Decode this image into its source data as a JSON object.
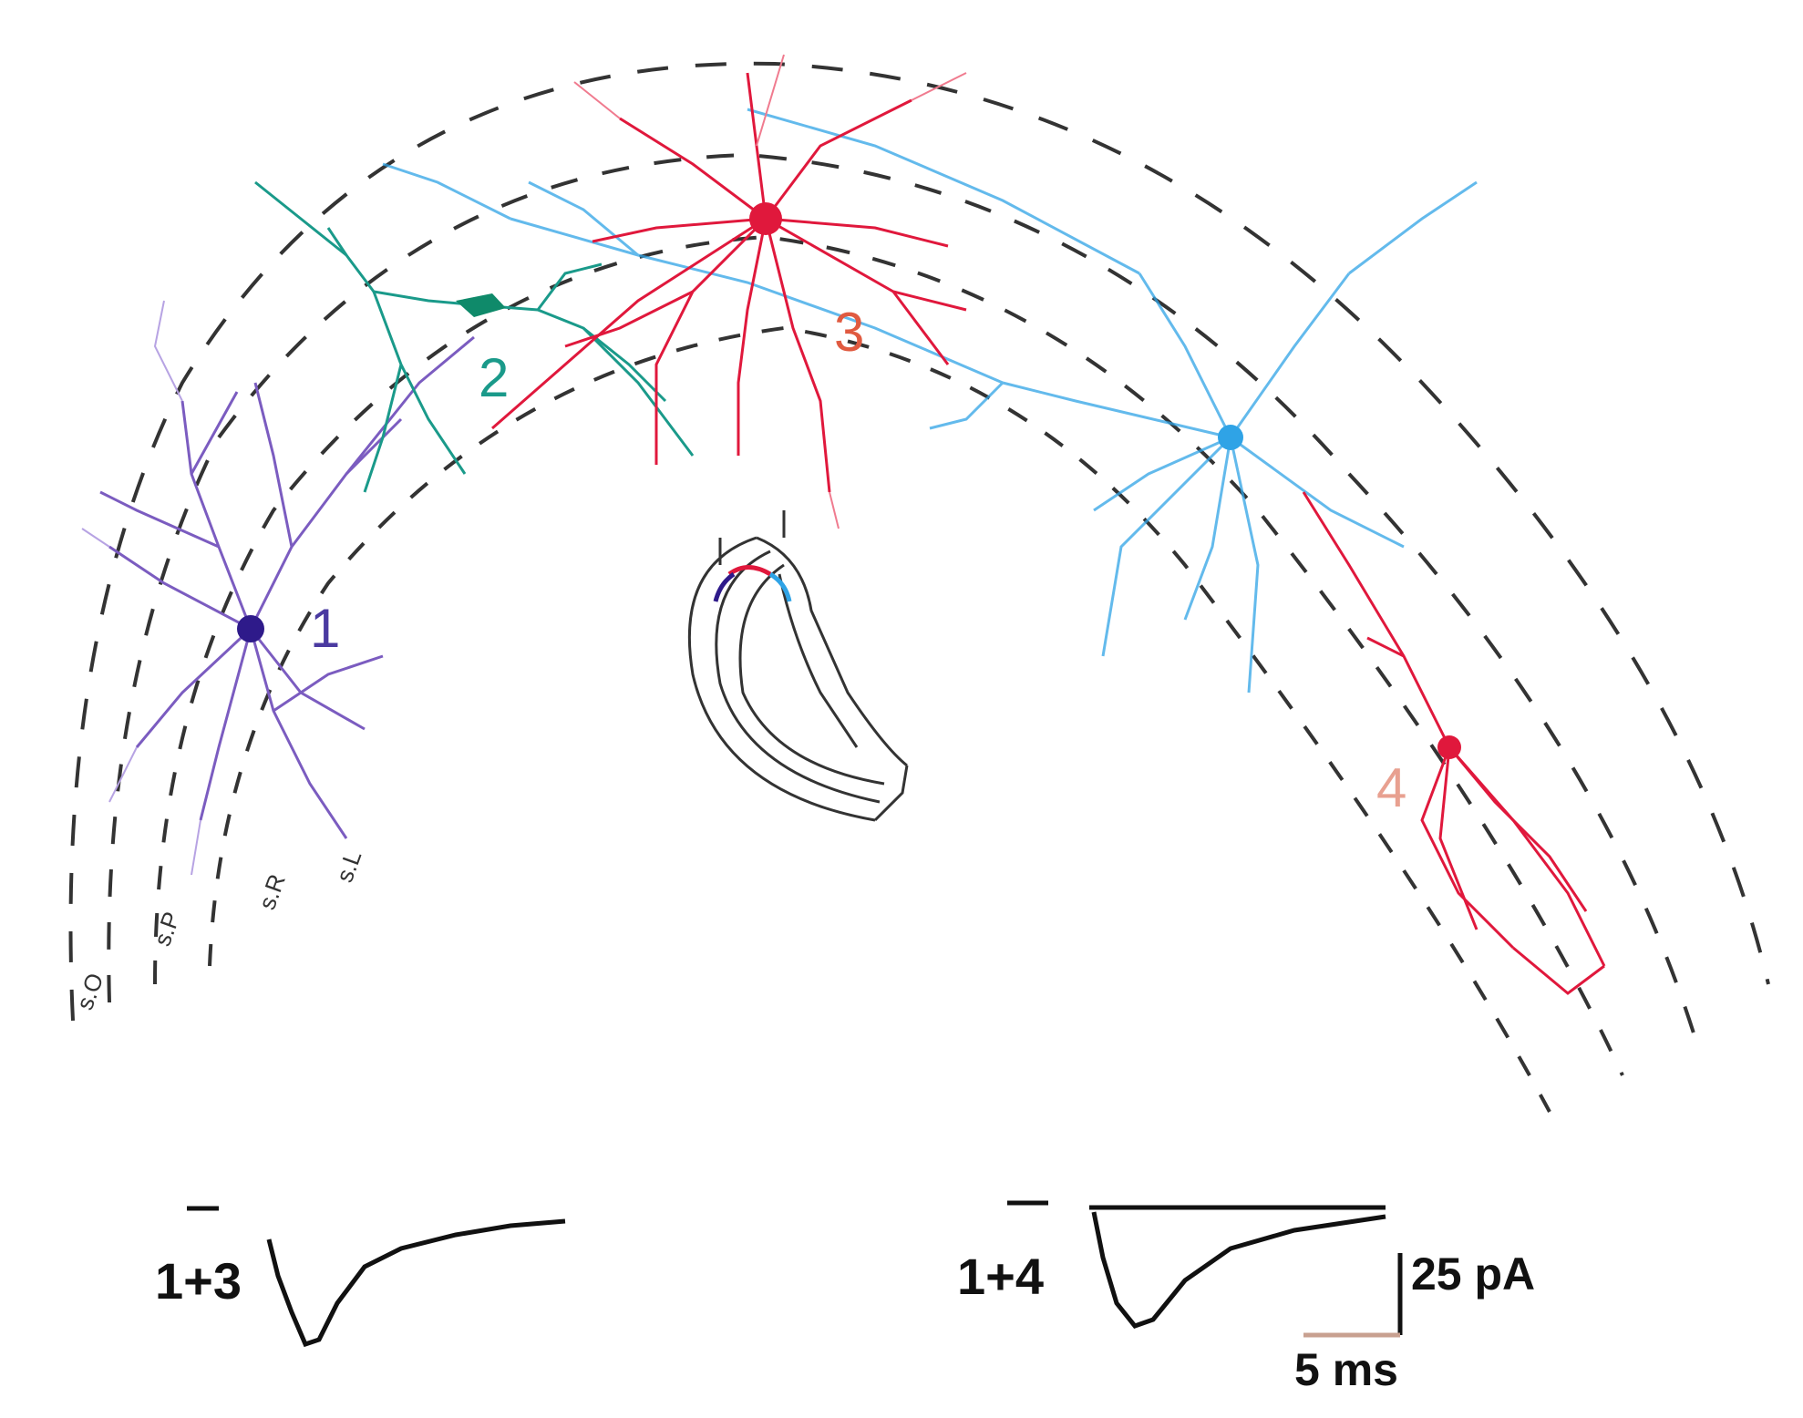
{
  "colors": {
    "cell1": "#2e1a8a",
    "cell1_dendrite": "#7b5cc0",
    "cell2": "#1a9a8a",
    "cell3": "#e0183c",
    "cell4": "#2fa3e6",
    "boundary": "#333333",
    "trace": "#111111",
    "scale_time": "#c8a090"
  },
  "diagram": {
    "cells": [
      {
        "id": "cell1",
        "label": "1"
      },
      {
        "id": "cell2",
        "label": "2"
      },
      {
        "id": "cell3",
        "label": "3"
      },
      {
        "id": "cell4",
        "label": "4"
      }
    ],
    "layer_labels": [
      "s.O",
      "s.P",
      "s.R",
      "s.L"
    ],
    "inset_icon": "hippocampus-outline"
  },
  "traces": [
    {
      "label": "1+3",
      "shape": "inward-current"
    },
    {
      "label": "1+4",
      "shape": "inward-current"
    }
  ],
  "scale_bar": {
    "amplitude": "25 pA",
    "time": "5 ms"
  }
}
